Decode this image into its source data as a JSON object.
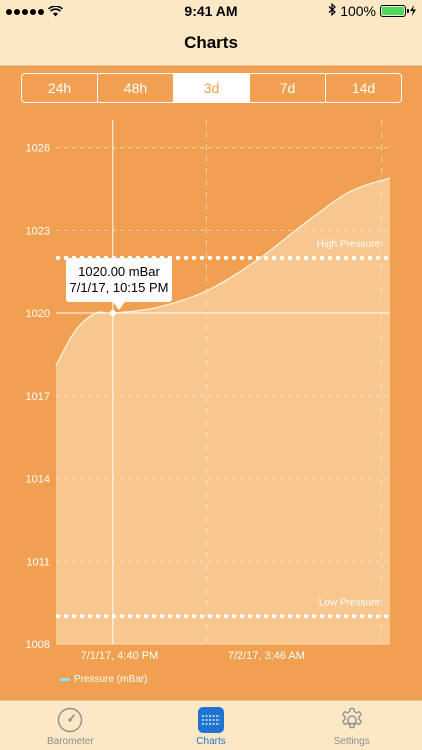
{
  "status_bar": {
    "time": "9:41 AM",
    "battery": "100%",
    "icons": [
      "signal-dots-icon",
      "wifi-icon",
      "bluetooth-icon",
      "battery-icon",
      "charging-icon"
    ]
  },
  "nav": {
    "title": "Charts"
  },
  "segments": [
    {
      "label": "24h",
      "selected": false
    },
    {
      "label": "48h",
      "selected": false
    },
    {
      "label": "3d",
      "selected": true
    },
    {
      "label": "7d",
      "selected": false
    },
    {
      "label": "14d",
      "selected": false
    }
  ],
  "tooltip": {
    "value": "1020.00 mBar",
    "time": "7/1/17, 10:15 PM"
  },
  "chart_data": {
    "type": "area",
    "ylim": [
      1008,
      1027
    ],
    "y_ticks": [
      "1026",
      "1023",
      "1020",
      "1017",
      "1014",
      "1011",
      "1008"
    ],
    "x_tick_labels": [
      "7/1/17, 4:40 PM",
      "7/2/17, 3:46 AM"
    ],
    "series": [
      {
        "name": "Pressure (mBar)",
        "x": [
          0,
          0.06,
          0.12,
          0.17,
          0.3,
          0.45,
          0.6,
          0.75,
          0.88,
          1.0
        ],
        "values": [
          1018.1,
          1019.4,
          1020.0,
          1020.0,
          1020.2,
          1020.8,
          1021.9,
          1023.3,
          1024.4,
          1024.9
        ]
      }
    ],
    "highlight_x": 0.17,
    "thresholds": [
      {
        "label": "High Pressure",
        "value": 1022
      },
      {
        "label": "Low Pressure",
        "value": 1009
      }
    ],
    "legend": "Pressure (mBar)",
    "grid": true
  },
  "tab_bar": {
    "items": [
      {
        "label": "Barometer",
        "icon": "gauge-icon",
        "selected": false
      },
      {
        "label": "Charts",
        "icon": "chart-list-icon",
        "selected": true
      },
      {
        "label": "Settings",
        "icon": "gear-icon",
        "selected": false
      }
    ]
  },
  "colors": {
    "background": "#f0a050",
    "bars": "#fde8c6",
    "accent": "#1e74d0",
    "fill": "#f8cf9b"
  }
}
